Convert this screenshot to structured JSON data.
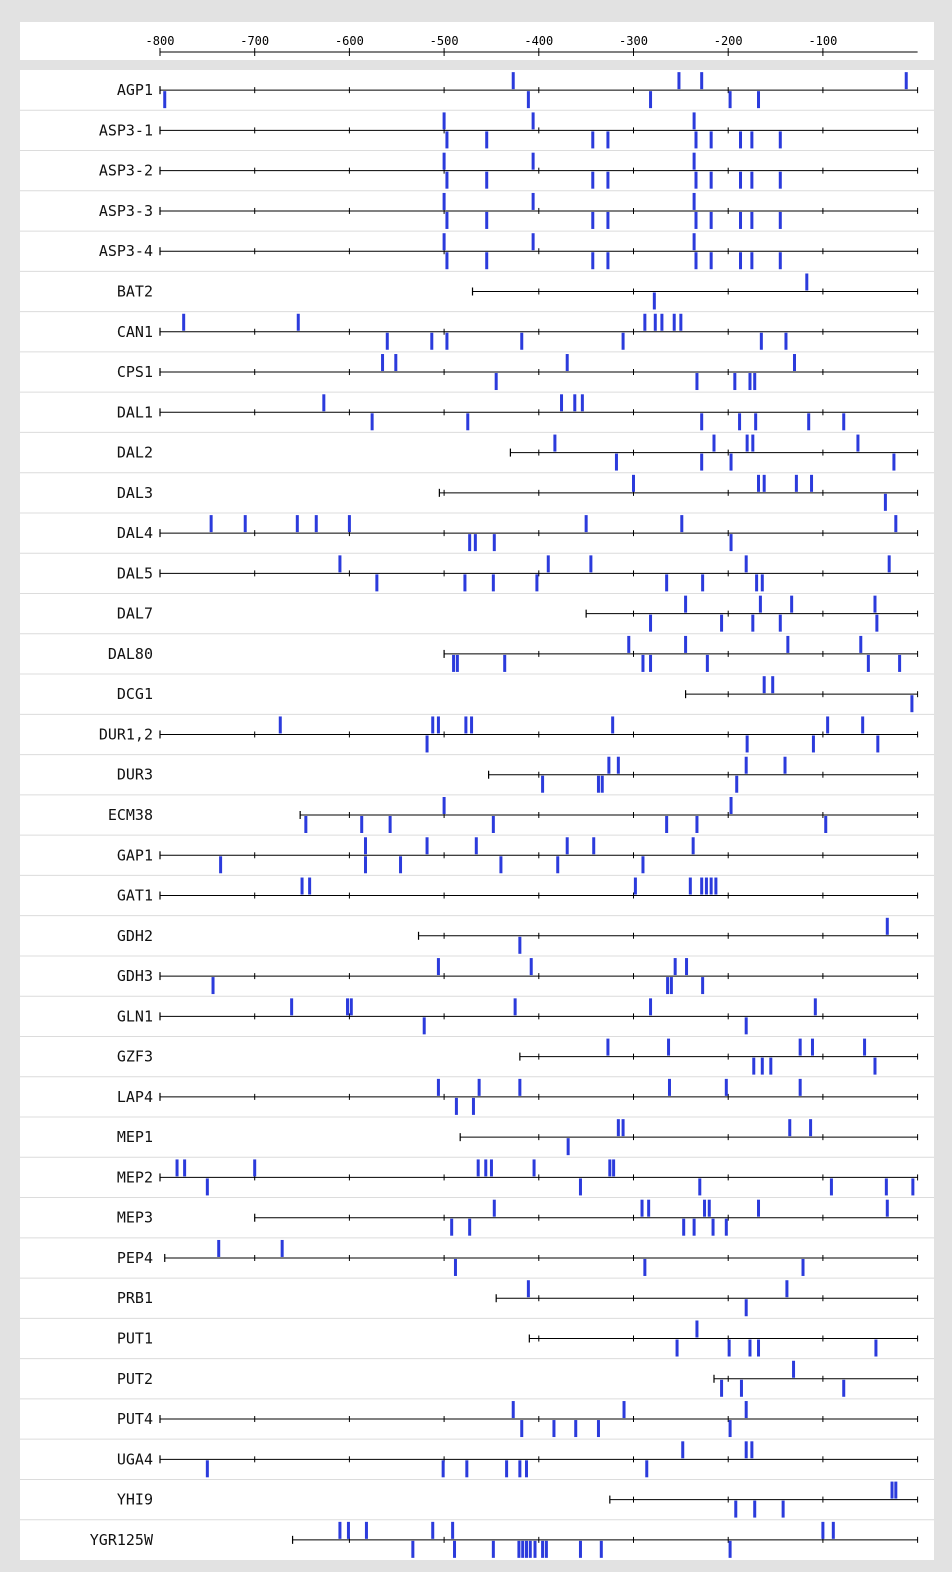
{
  "colors": {
    "background": "#e2e2e2",
    "panel": "#ffffff",
    "site": "#2b3bdc",
    "line": "#000000",
    "separator": "#dcdcdc"
  },
  "axis": {
    "min": -800,
    "max": 0,
    "ticks": [
      -800,
      -700,
      -600,
      -500,
      -400,
      -300,
      -200,
      -100
    ],
    "tick_labels": [
      "-800",
      "-700",
      "-600",
      "-500",
      "-400",
      "-300",
      "-200",
      "-100"
    ]
  },
  "chart_data": {
    "type": "promoter-site-map",
    "x_unit": "position relative to start",
    "genes": [
      {
        "name": "AGP1",
        "start": -800,
        "top": [
          -427,
          -252,
          -228,
          -12
        ],
        "bottom": [
          -795,
          -411,
          -282,
          -198,
          -168
        ]
      },
      {
        "name": "ASP3-1",
        "start": -800,
        "top": [
          -500,
          -406,
          -236
        ],
        "bottom": [
          -497,
          -455,
          -343,
          -327,
          -234,
          -218,
          -187,
          -175,
          -145
        ]
      },
      {
        "name": "ASP3-2",
        "start": -800,
        "top": [
          -500,
          -406,
          -236
        ],
        "bottom": [
          -497,
          -455,
          -343,
          -327,
          -234,
          -218,
          -187,
          -175,
          -145
        ]
      },
      {
        "name": "ASP3-3",
        "start": -800,
        "top": [
          -500,
          -406,
          -236
        ],
        "bottom": [
          -497,
          -455,
          -343,
          -327,
          -234,
          -218,
          -187,
          -175,
          -145
        ]
      },
      {
        "name": "ASP3-4",
        "start": -800,
        "top": [
          -500,
          -406,
          -236
        ],
        "bottom": [
          -497,
          -455,
          -343,
          -327,
          -234,
          -218,
          -187,
          -175,
          -145
        ]
      },
      {
        "name": "BAT2",
        "start": -470,
        "top": [
          -117
        ],
        "bottom": [
          -278
        ]
      },
      {
        "name": "CAN1",
        "start": -800,
        "top": [
          -775,
          -654,
          -288,
          -277,
          -270,
          -257,
          -250
        ],
        "bottom": [
          -560,
          -513,
          -497,
          -418,
          -311,
          -165,
          -139
        ]
      },
      {
        "name": "CPS1",
        "start": -800,
        "top": [
          -565,
          -551,
          -370,
          -130
        ],
        "bottom": [
          -445,
          -233,
          -193,
          -177,
          -172
        ]
      },
      {
        "name": "DAL1",
        "start": -800,
        "top": [
          -627,
          -376,
          -362,
          -354
        ],
        "bottom": [
          -576,
          -475,
          -228,
          -188,
          -171,
          -115,
          -78
        ]
      },
      {
        "name": "DAL2",
        "start": -430,
        "top": [
          -383,
          -215,
          -180,
          -174,
          -63
        ],
        "bottom": [
          -318,
          -228,
          -197,
          -25
        ]
      },
      {
        "name": "DAL3",
        "start": -505,
        "top": [
          -300,
          -168,
          -162,
          -128,
          -112
        ],
        "bottom": [
          -34
        ]
      },
      {
        "name": "DAL4",
        "start": -800,
        "top": [
          -746,
          -710,
          -655,
          -635,
          -600,
          -350,
          -249,
          -23
        ],
        "bottom": [
          -473,
          -467,
          -447,
          -197
        ]
      },
      {
        "name": "DAL5",
        "start": -800,
        "top": [
          -610,
          -390,
          -345,
          -181,
          -30
        ],
        "bottom": [
          -571,
          -478,
          -448,
          -402,
          -265,
          -227,
          -170,
          -164
        ]
      },
      {
        "name": "DAL7",
        "start": -350,
        "top": [
          -245,
          -166,
          -133,
          -45
        ],
        "bottom": [
          -282,
          -207,
          -174,
          -145,
          -43
        ]
      },
      {
        "name": "DAL80",
        "start": -500,
        "top": [
          -305,
          -245,
          -137,
          -60
        ],
        "bottom": [
          -490,
          -486,
          -436,
          -290,
          -282,
          -222,
          -52,
          -19
        ]
      },
      {
        "name": "DCG1",
        "start": -245,
        "top": [
          -162,
          -153
        ],
        "bottom": [
          -6
        ]
      },
      {
        "name": "DUR1,2",
        "start": -800,
        "top": [
          -673,
          -512,
          -506,
          -477,
          -471,
          -322,
          -95,
          -58
        ],
        "bottom": [
          -518,
          -180,
          -110,
          -42
        ]
      },
      {
        "name": "DUR3",
        "start": -453,
        "top": [
          -326,
          -316,
          -181,
          -140
        ],
        "bottom": [
          -396,
          -337,
          -333,
          -191
        ]
      },
      {
        "name": "ECM38",
        "start": -652,
        "top": [
          -500,
          -197
        ],
        "bottom": [
          -646,
          -587,
          -557,
          -448,
          -265,
          -233,
          -97
        ]
      },
      {
        "name": "GAP1",
        "start": -800,
        "top": [
          -583,
          -518,
          -466,
          -370,
          -342,
          -237
        ],
        "bottom": [
          -736,
          -583,
          -546,
          -440,
          -380,
          -290
        ]
      },
      {
        "name": "GAT1",
        "start": -800,
        "top": [
          -650,
          -642,
          -298,
          -240,
          -228,
          -223,
          -218,
          -213
        ],
        "bottom": []
      },
      {
        "name": "GDH2",
        "start": -527,
        "top": [
          -32
        ],
        "bottom": [
          -420
        ]
      },
      {
        "name": "GDH3",
        "start": -800,
        "top": [
          -506,
          -408,
          -256,
          -244
        ],
        "bottom": [
          -744,
          -264,
          -260,
          -227
        ]
      },
      {
        "name": "GLN1",
        "start": -800,
        "top": [
          -661,
          -602,
          -598,
          -425,
          -282,
          -108
        ],
        "bottom": [
          -521,
          -181
        ]
      },
      {
        "name": "GZF3",
        "start": -420,
        "top": [
          -327,
          -263,
          -124,
          -111,
          -56
        ],
        "bottom": [
          -173,
          -164,
          -155,
          -45
        ]
      },
      {
        "name": "LAP4",
        "start": -800,
        "top": [
          -506,
          -463,
          -420,
          -262,
          -202,
          -124
        ],
        "bottom": [
          -487,
          -469
        ]
      },
      {
        "name": "MEP1",
        "start": -483,
        "top": [
          -316,
          -311,
          -135,
          -113
        ],
        "bottom": [
          -369
        ]
      },
      {
        "name": "MEP2",
        "start": -800,
        "top": [
          -782,
          -774,
          -700,
          -464,
          -456,
          -450,
          -405,
          -325,
          -321
        ],
        "bottom": [
          -750,
          -356,
          -230,
          -91,
          -33,
          -5
        ]
      },
      {
        "name": "MEP3",
        "start": -700,
        "top": [
          -447,
          -291,
          -284,
          -225,
          -220,
          -168,
          -32
        ],
        "bottom": [
          -492,
          -473,
          -247,
          -236,
          -216,
          -202
        ]
      },
      {
        "name": "PEP4",
        "start": -795,
        "top": [
          -738,
          -671
        ],
        "bottom": [
          -488,
          -288,
          -121
        ]
      },
      {
        "name": "PRB1",
        "start": -445,
        "top": [
          -411,
          -138
        ],
        "bottom": [
          -181
        ]
      },
      {
        "name": "PUT1",
        "start": -410,
        "top": [
          -233
        ],
        "bottom": [
          -254,
          -199,
          -177,
          -168,
          -44
        ]
      },
      {
        "name": "PUT2",
        "start": -215,
        "top": [
          -131
        ],
        "bottom": [
          -207,
          -186,
          -78
        ]
      },
      {
        "name": "PUT4",
        "start": -800,
        "top": [
          -427,
          -310,
          -181
        ],
        "bottom": [
          -418,
          -384,
          -361,
          -337,
          -198
        ]
      },
      {
        "name": "UGA4",
        "start": -800,
        "top": [
          -248,
          -181,
          -175
        ],
        "bottom": [
          -750,
          -501,
          -476,
          -434,
          -420,
          -413,
          -286
        ]
      },
      {
        "name": "YHI9",
        "start": -325,
        "top": [
          -27,
          -23
        ],
        "bottom": [
          -192,
          -172,
          -142
        ]
      },
      {
        "name": "YGR125W",
        "start": -660,
        "top": [
          -610,
          -601,
          -582,
          -512,
          -491,
          -100,
          -89
        ],
        "bottom": [
          -533,
          -489,
          -448,
          -421,
          -417,
          -413,
          -409,
          -404,
          -396,
          -392,
          -356,
          -334,
          -198
        ]
      }
    ]
  }
}
